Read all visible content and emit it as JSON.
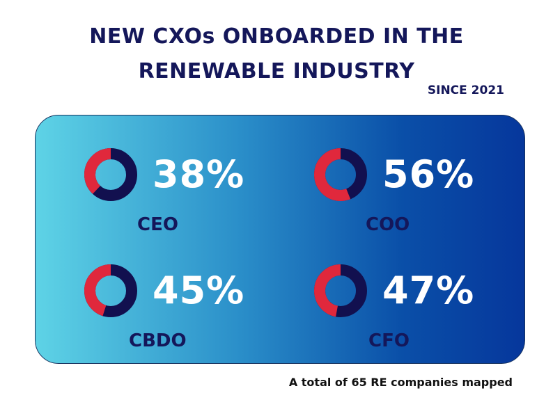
{
  "title_line1": "NEW CXOs ONBOARDED IN THE",
  "title_line2": "RENEWABLE INDUSTRY",
  "subtitle": "SINCE 2021",
  "footer": "A total of 65 RE companies mapped",
  "colors": {
    "highlight": "#e0283c",
    "remainder": "#12104f",
    "text_dark": "#14175a",
    "gradient_start": "#5ed3e6",
    "gradient_end": "#06379c"
  },
  "chart_data": {
    "type": "pie",
    "title": "NEW CXOs ONBOARDED IN THE RENEWABLE INDUSTRY",
    "subtitle": "SINCE 2021",
    "categories": [
      "CEO",
      "COO",
      "CBDO",
      "CFO"
    ],
    "values": [
      38,
      56,
      45,
      47
    ],
    "value_labels": [
      "38%",
      "56%",
      "45%",
      "47%"
    ],
    "note": "A total of 65 RE companies mapped"
  }
}
